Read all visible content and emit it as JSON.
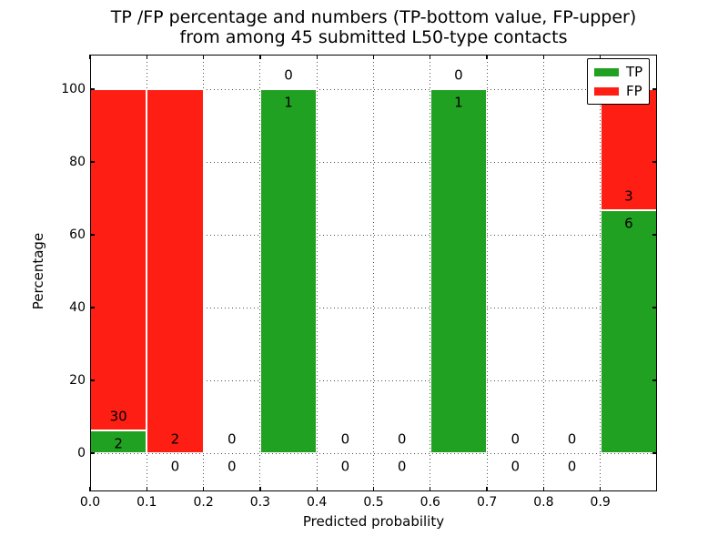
{
  "chart_data": {
    "type": "bar",
    "stacked": true,
    "title_lines": [
      "TP /FP percentage and numbers (TP-bottom value, FP-upper)",
      "from among 45 submitted L50-type contacts"
    ],
    "xlabel": "Predicted probability",
    "ylabel": "Percentage",
    "xlim": [
      0.0,
      1.0
    ],
    "ylim": [
      -10.5,
      109.5
    ],
    "xtick_labels": [
      "0.0",
      "0.1",
      "0.2",
      "0.3",
      "0.4",
      "0.5",
      "0.6",
      "0.7",
      "0.8",
      "0.9"
    ],
    "yticks": [
      0,
      20,
      40,
      60,
      80,
      100
    ],
    "grid": "dotted",
    "bar_edge_color": "#ffffff",
    "legend": {
      "position": "upper-right",
      "items": [
        {
          "label": "TP",
          "color": "#21a121"
        },
        {
          "label": "FP",
          "color": "#fe1e14"
        }
      ]
    },
    "bins": [
      {
        "x_range": [
          0.0,
          0.1
        ],
        "tp": 2,
        "fp": 30,
        "tp_pct": 6.25,
        "fp_pct": 93.75
      },
      {
        "x_range": [
          0.1,
          0.2
        ],
        "tp": 0,
        "fp": 2,
        "tp_pct": 0,
        "fp_pct": 100
      },
      {
        "x_range": [
          0.2,
          0.3
        ],
        "tp": 0,
        "fp": 0,
        "tp_pct": 0,
        "fp_pct": 0
      },
      {
        "x_range": [
          0.3,
          0.4
        ],
        "tp": 1,
        "fp": 0,
        "tp_pct": 100,
        "fp_pct": 0
      },
      {
        "x_range": [
          0.4,
          0.5
        ],
        "tp": 0,
        "fp": 0,
        "tp_pct": 0,
        "fp_pct": 0
      },
      {
        "x_range": [
          0.5,
          0.6
        ],
        "tp": 0,
        "fp": 0,
        "tp_pct": 0,
        "fp_pct": 0
      },
      {
        "x_range": [
          0.6,
          0.7
        ],
        "tp": 1,
        "fp": 0,
        "tp_pct": 100,
        "fp_pct": 0
      },
      {
        "x_range": [
          0.7,
          0.8
        ],
        "tp": 0,
        "fp": 0,
        "tp_pct": 0,
        "fp_pct": 0
      },
      {
        "x_range": [
          0.8,
          0.9
        ],
        "tp": 0,
        "fp": 0,
        "tp_pct": 0,
        "fp_pct": 0
      },
      {
        "x_range": [
          0.9,
          1.0
        ],
        "tp": 6,
        "fp": 3,
        "tp_pct": 66.67,
        "fp_pct": 33.33
      }
    ]
  }
}
